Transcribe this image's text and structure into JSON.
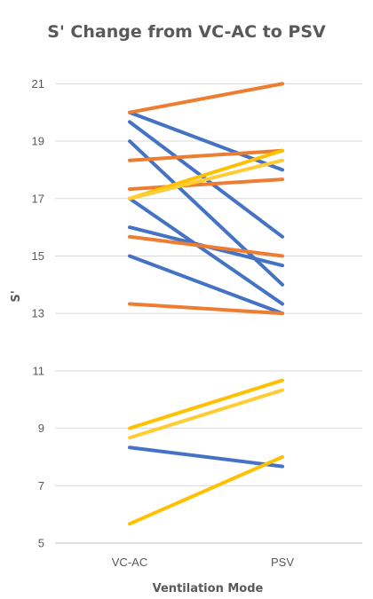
{
  "chart_data": {
    "type": "line",
    "title": "S' Change from VC-AC to PSV",
    "xlabel": "Ventilation Mode",
    "ylabel": "S'",
    "categories": [
      "VC-AC",
      "PSV"
    ],
    "ylim": [
      5,
      22
    ],
    "yticks": [
      5,
      7,
      9,
      11,
      13,
      15,
      17,
      19,
      21
    ],
    "grid": true,
    "colors": {
      "blue": "#4472c4",
      "orange": "#ed7d31",
      "gold": "#ffc000",
      "lightgold": "#ffcd33"
    },
    "series": [
      {
        "values": [
          20.0,
          18.0
        ],
        "color": "#4472c4"
      },
      {
        "values": [
          19.67,
          15.67
        ],
        "color": "#4472c4"
      },
      {
        "values": [
          19.0,
          14.0
        ],
        "color": "#4472c4"
      },
      {
        "values": [
          17.0,
          13.33
        ],
        "color": "#4472c4"
      },
      {
        "values": [
          16.0,
          14.67
        ],
        "color": "#4472c4"
      },
      {
        "values": [
          15.0,
          13.0
        ],
        "color": "#4472c4"
      },
      {
        "values": [
          8.33,
          7.67
        ],
        "color": "#4472c4"
      },
      {
        "values": [
          20.0,
          21.0
        ],
        "color": "#ed7d31"
      },
      {
        "values": [
          18.33,
          18.67
        ],
        "color": "#ed7d31"
      },
      {
        "values": [
          17.33,
          17.67
        ],
        "color": "#ed7d31"
      },
      {
        "values": [
          15.67,
          15.0
        ],
        "color": "#ed7d31"
      },
      {
        "values": [
          13.33,
          13.0
        ],
        "color": "#ed7d31"
      },
      {
        "values": [
          17.0,
          18.67
        ],
        "color": "#ffc000"
      },
      {
        "values": [
          17.0,
          18.33
        ],
        "color": "#ffcd33"
      },
      {
        "values": [
          9.0,
          10.67
        ],
        "color": "#ffc000"
      },
      {
        "values": [
          8.67,
          10.33
        ],
        "color": "#ffcd33"
      },
      {
        "values": [
          5.67,
          8.0
        ],
        "color": "#ffc000"
      }
    ]
  }
}
